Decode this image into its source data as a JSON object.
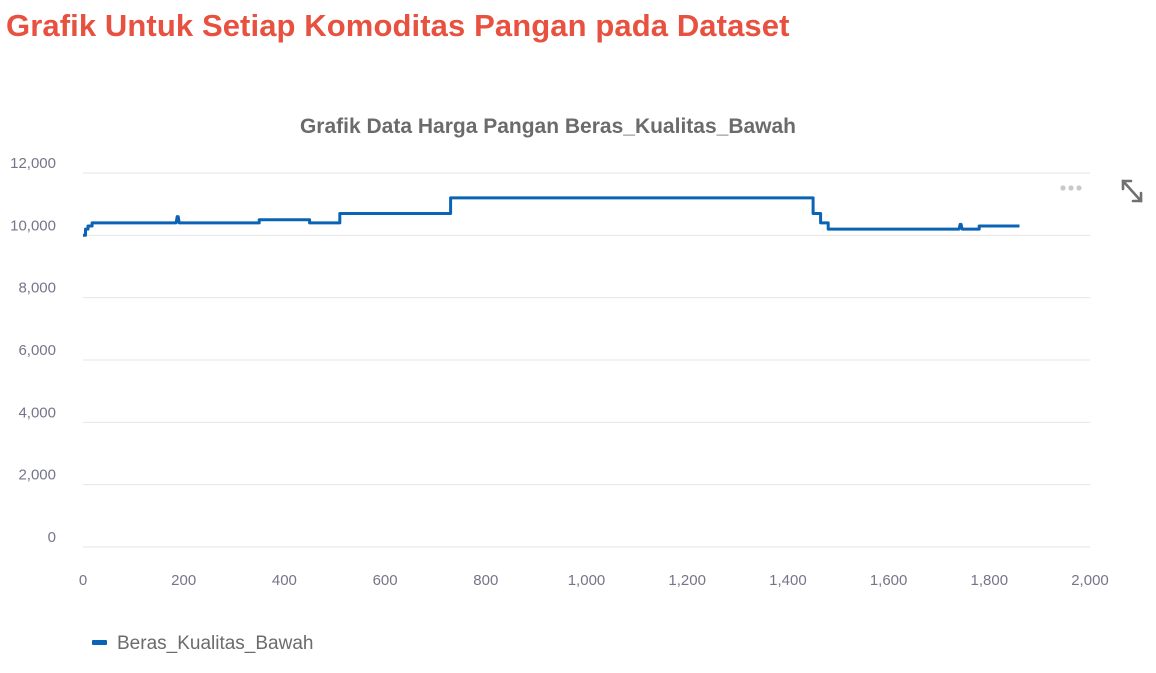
{
  "page": {
    "heading": "Grafik Untuk Setiap Komoditas Pangan pada Dataset"
  },
  "toolbar": {
    "menu_icon": "more-horizontal-icon",
    "expand_icon": "expand-arrows-icon"
  },
  "colors": {
    "heading": "#e8513f",
    "series": "#0b63b5",
    "title": "#6b6b6b",
    "tick": "#75758a",
    "grid": "#e6e6e6",
    "legend_text": "#6b6b6b",
    "icon": "#c9c9c9"
  },
  "chart_data": {
    "type": "line",
    "title": "Grafik Data Harga Pangan Beras_Kualitas_Bawah",
    "xlabel": "",
    "ylabel": "",
    "xlim": [
      0,
      2000
    ],
    "ylim": [
      0,
      12000
    ],
    "xticks": [
      0,
      200,
      400,
      600,
      800,
      1000,
      1200,
      1400,
      1600,
      1800,
      2000
    ],
    "xtick_labels": [
      "0",
      "200",
      "400",
      "600",
      "800",
      "1,000",
      "1,200",
      "1,400",
      "1,600",
      "1,800",
      "2,000"
    ],
    "yticks": [
      0,
      2000,
      4000,
      6000,
      8000,
      10000,
      12000
    ],
    "ytick_labels": [
      "0",
      "2,000",
      "4,000",
      "6,000",
      "8,000",
      "10,000",
      "12,000"
    ],
    "grid": true,
    "legend_position": "bottom-left",
    "series": [
      {
        "name": "Beras_Kualitas_Bawah",
        "line": "step",
        "x": [
          0,
          5,
          5,
          10,
          10,
          18,
          18,
          185,
          187,
          189,
          191,
          350,
          350,
          450,
          450,
          510,
          510,
          730,
          730,
          1450,
          1450,
          1465,
          1465,
          1480,
          1480,
          1740,
          1742,
          1744,
          1746,
          1780,
          1780,
          1860
        ],
        "y": [
          10000,
          10000,
          10200,
          10200,
          10300,
          10300,
          10400,
          10400,
          10600,
          10600,
          10400,
          10400,
          10500,
          10500,
          10400,
          10400,
          10700,
          10700,
          11200,
          11200,
          10700,
          10700,
          10400,
          10400,
          10200,
          10200,
          10350,
          10350,
          10200,
          10200,
          10300,
          10300
        ]
      }
    ]
  }
}
